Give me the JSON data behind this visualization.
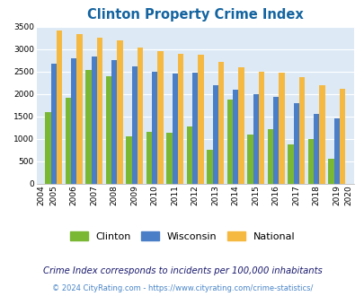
{
  "title": "Clinton Property Crime Index",
  "years": [
    2004,
    2005,
    2006,
    2007,
    2008,
    2009,
    2010,
    2011,
    2012,
    2013,
    2014,
    2015,
    2016,
    2017,
    2018,
    2019,
    2020
  ],
  "clinton": [
    null,
    1600,
    1920,
    2530,
    2400,
    1050,
    1160,
    1140,
    1270,
    760,
    1870,
    1100,
    1220,
    870,
    1000,
    560,
    null
  ],
  "wisconsin": [
    null,
    2670,
    2800,
    2830,
    2750,
    2610,
    2500,
    2460,
    2470,
    2190,
    2090,
    1990,
    1940,
    1800,
    1560,
    1460,
    null
  ],
  "national": [
    null,
    3420,
    3340,
    3250,
    3200,
    3040,
    2950,
    2900,
    2870,
    2720,
    2600,
    2490,
    2470,
    2370,
    2200,
    2110,
    null
  ],
  "clinton_color": "#7ab733",
  "wisconsin_color": "#4a7ec7",
  "national_color": "#f5b942",
  "bg_color": "#ddeaf6",
  "ylim": [
    0,
    3500
  ],
  "yticks": [
    0,
    500,
    1000,
    1500,
    2000,
    2500,
    3000,
    3500
  ],
  "title_color": "#1464a0",
  "title_fontsize": 10.5,
  "legend_labels": [
    "Clinton",
    "Wisconsin",
    "National"
  ],
  "footnote1": "Crime Index corresponds to incidents per 100,000 inhabitants",
  "footnote2": "© 2024 CityRating.com - https://www.cityrating.com/crime-statistics/",
  "footnote_color1": "#1a1a6e",
  "footnote_color2": "#4a86c8"
}
